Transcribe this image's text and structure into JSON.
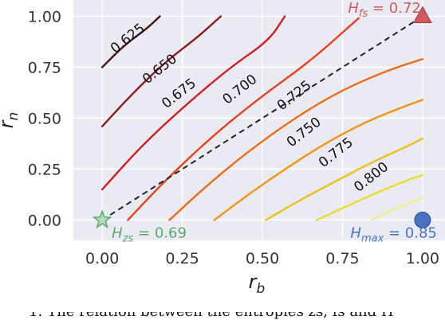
{
  "chart_data": {
    "type": "contour",
    "xlabel": "r_b",
    "ylabel": "r_n",
    "xlim": [
      -0.09,
      1.07
    ],
    "ylim": [
      -0.1,
      1.08
    ],
    "x_ticks": [
      "0.00",
      "0.25",
      "0.50",
      "0.75",
      "1.00"
    ],
    "y_ticks": [
      "0.00",
      "0.25",
      "0.50",
      "0.75",
      "1.00"
    ],
    "x_tick_values": [
      0,
      0.25,
      0.5,
      0.75,
      1.0
    ],
    "y_tick_values": [
      0,
      0.25,
      0.5,
      0.75,
      1.0
    ],
    "grid": true,
    "background": "#eaeaf2",
    "contours": [
      {
        "level": "0.625",
        "color": "#4a0f12",
        "points": [
          [
            0.0,
            0.75
          ],
          [
            0.07,
            0.86
          ],
          [
            0.14,
            0.94
          ],
          [
            0.18,
            1.0
          ]
        ]
      },
      {
        "level": "0.650",
        "color": "#8e1a1c",
        "points": [
          [
            0.0,
            0.46
          ],
          [
            0.1,
            0.63
          ],
          [
            0.2,
            0.78
          ],
          [
            0.3,
            0.9
          ],
          [
            0.37,
            1.0
          ]
        ]
      },
      {
        "level": "0.675",
        "color": "#d01d1d",
        "points": [
          [
            0.0,
            0.15
          ],
          [
            0.12,
            0.36
          ],
          [
            0.25,
            0.55
          ],
          [
            0.4,
            0.75
          ],
          [
            0.52,
            0.88
          ],
          [
            0.57,
            1.0
          ]
        ]
      },
      {
        "level": "0.700",
        "color": "#e8401a",
        "points": [
          [
            0.08,
            0.0
          ],
          [
            0.2,
            0.2
          ],
          [
            0.35,
            0.42
          ],
          [
            0.5,
            0.61
          ],
          [
            0.65,
            0.78
          ],
          [
            0.8,
            0.99
          ]
        ]
      },
      {
        "level": "0.725",
        "color": "#ee6a14",
        "points": [
          [
            0.21,
            0.0
          ],
          [
            0.32,
            0.16
          ],
          [
            0.45,
            0.33
          ],
          [
            0.6,
            0.5
          ],
          [
            0.75,
            0.64
          ],
          [
            0.9,
            0.74
          ],
          [
            1.0,
            0.79
          ]
        ]
      },
      {
        "level": "0.750",
        "color": "#f19412",
        "points": [
          [
            0.35,
            0.0
          ],
          [
            0.46,
            0.13
          ],
          [
            0.58,
            0.26
          ],
          [
            0.7,
            0.38
          ],
          [
            0.82,
            0.48
          ],
          [
            0.93,
            0.55
          ],
          [
            1.0,
            0.59
          ]
        ]
      },
      {
        "level": "0.775",
        "color": "#ecc21a",
        "points": [
          [
            0.51,
            0.0
          ],
          [
            0.62,
            0.1
          ],
          [
            0.74,
            0.2
          ],
          [
            0.85,
            0.29
          ],
          [
            0.95,
            0.36
          ],
          [
            1.0,
            0.4
          ]
        ]
      },
      {
        "level": "0.800",
        "color": "#e8dc2e",
        "points": [
          [
            0.67,
            0.0
          ],
          [
            0.78,
            0.08
          ],
          [
            0.88,
            0.15
          ],
          [
            0.96,
            0.2
          ],
          [
            1.0,
            0.22
          ]
        ]
      },
      {
        "level": "",
        "color": "#f0ec8a",
        "points": [
          [
            0.84,
            0.0
          ],
          [
            0.92,
            0.06
          ],
          [
            1.0,
            0.11
          ]
        ]
      }
    ],
    "contour_label_positions": [
      [
        0.08,
        0.89
      ],
      [
        0.18,
        0.74
      ],
      [
        0.24,
        0.62
      ],
      [
        0.43,
        0.64
      ],
      [
        0.6,
        0.61
      ],
      [
        0.63,
        0.43
      ],
      [
        0.73,
        0.33
      ],
      [
        0.84,
        0.21
      ]
    ],
    "dashed_line": {
      "from": [
        0.0,
        0.0
      ],
      "to": [
        1.0,
        1.0
      ],
      "color": "#222222"
    },
    "markers": [
      {
        "name": "star",
        "x": 0.0,
        "y": 0.0,
        "color": "#5aa96a",
        "label_prefix": "H",
        "label_sub": "zs",
        "label_value": "= 0.69"
      },
      {
        "name": "triangle",
        "x": 1.0,
        "y": 1.0,
        "color": "#d05a5f",
        "label_prefix": "H",
        "label_sub": "fs",
        "label_value": "= 0.72"
      },
      {
        "name": "circle",
        "x": 1.0,
        "y": 0.0,
        "color": "#4a72c2",
        "label_prefix": "H",
        "label_sub": "max",
        "label_value": "= 0.85"
      }
    ]
  },
  "caption_text": "1: The relation between the entropies zs, fs and H"
}
